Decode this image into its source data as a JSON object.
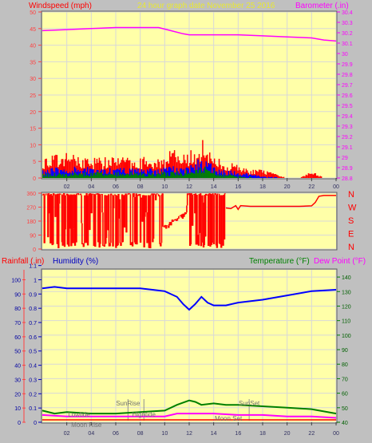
{
  "header": {
    "left": "Windspeed (mph)",
    "center": "24 hour graph date   November 25 2016",
    "right": "Barometer (.in)"
  },
  "colors": {
    "bg": "#c0c0c0",
    "plot": "#ffffa8",
    "grid": "#d8d8d8",
    "red": "#ff0000",
    "blue": "#0000ff",
    "green": "#008000",
    "magenta": "#ff00ff",
    "yellow": "#e8e830",
    "axisRed": "#ff4040",
    "axisBlue": "#0000c0",
    "dark": "#404040"
  },
  "chart_data": [
    {
      "type": "area",
      "name": "windspeed-barometer",
      "x_ticks": [
        "02",
        "04",
        "06",
        "08",
        "10",
        "12",
        "14",
        "16",
        "18",
        "20",
        "22",
        "00"
      ],
      "y_left": {
        "label": "Windspeed (mph)",
        "ticks": [
          0,
          5,
          10,
          15,
          20,
          25,
          30,
          35,
          40,
          45,
          50
        ],
        "lim": [
          0,
          50
        ]
      },
      "y_right": {
        "label": "Barometer (.in)",
        "ticks": [
          "28.8",
          "28.9",
          "29",
          "29.1",
          "29.2",
          "29.3",
          "29.4",
          "29.5",
          "29.6",
          "29.7",
          "29.8",
          "29.9",
          "30",
          "30.1",
          "30.2",
          "30.3",
          "30.4"
        ],
        "lim": [
          28.8,
          30.4
        ]
      },
      "barometer": {
        "x": [
          0,
          2,
          4,
          6,
          8,
          9.5,
          10.5,
          11.5,
          12,
          13,
          14,
          16,
          18,
          20,
          22,
          23,
          24
        ],
        "y": [
          30.22,
          30.23,
          30.24,
          30.25,
          30.25,
          30.25,
          30.22,
          30.19,
          30.18,
          30.18,
          30.18,
          30.18,
          30.17,
          30.16,
          30.15,
          30.13,
          30.12
        ]
      },
      "gust_profile": {
        "x": [
          0,
          2,
          4,
          6,
          8,
          9,
          10,
          10.6,
          11,
          12,
          12.6,
          13,
          13.4,
          14,
          15,
          16,
          17,
          18,
          19,
          20,
          21,
          22,
          23,
          24
        ],
        "y": [
          5,
          6,
          5,
          5,
          5,
          5,
          5,
          9,
          5,
          6,
          8,
          10,
          7,
          5,
          4,
          3,
          2,
          2,
          1,
          0,
          0,
          2,
          0,
          0
        ]
      },
      "avg_profile": {
        "x": [
          0,
          2,
          4,
          6,
          8,
          10,
          11,
          12,
          13,
          14,
          15,
          16,
          17,
          18,
          20,
          22,
          24
        ],
        "y": [
          2,
          3,
          2.5,
          2.5,
          2.5,
          2.5,
          3,
          3,
          5,
          3,
          2,
          1.5,
          1,
          0.5,
          0,
          0,
          0
        ]
      },
      "low_profile": {
        "x": [
          0,
          4,
          8,
          10,
          12,
          13,
          14,
          15,
          16,
          18,
          24
        ],
        "y": [
          1,
          1.5,
          1.5,
          1.5,
          2,
          3,
          2,
          1,
          0.5,
          0,
          0
        ]
      }
    },
    {
      "type": "line",
      "name": "wind-direction",
      "y_ticks": [
        0,
        90,
        180,
        270,
        360
      ],
      "lim": [
        0,
        360
      ],
      "compass": [
        "N",
        "W",
        "S",
        "E",
        "N"
      ],
      "direction_after_noon": {
        "x": [
          15.0,
          15.4,
          15.8,
          16.0,
          16.2,
          17,
          18,
          19,
          20,
          21,
          22,
          22.3,
          22.6,
          23,
          24
        ],
        "y": [
          265,
          260,
          280,
          255,
          280,
          275,
          275,
          275,
          275,
          275,
          278,
          300,
          340,
          345,
          345
        ]
      }
    },
    {
      "type": "line",
      "name": "humidity-temperature",
      "x_ticks": [
        "02",
        "04",
        "06",
        "08",
        "10",
        "12",
        "14",
        "16",
        "18",
        "20",
        "22",
        "00"
      ],
      "y_left_outer": {
        "label": "Rainfall (.in)",
        "ticks": [
          0,
          10,
          20,
          30,
          40,
          50,
          60,
          70,
          80,
          90,
          100
        ]
      },
      "y_left_inner": {
        "label": "Humidity (%)",
        "ticks": [
          "0",
          "0.1",
          "0.2",
          "0.3",
          "0.4",
          "0.5",
          "0.6",
          "0.7",
          "0.8",
          "0.9",
          "1",
          "1.1"
        ]
      },
      "y_right": {
        "label": "Temperature (°F)",
        "label2": "Dew Point (°F)",
        "ticks": [
          40,
          50,
          60,
          70,
          80,
          90,
          100,
          110,
          120,
          130,
          140
        ]
      },
      "humidity": {
        "x": [
          0,
          1,
          2,
          4,
          6,
          8,
          9,
          10,
          11,
          11.5,
          12,
          12.5,
          13,
          13.5,
          14,
          15,
          16,
          18,
          20,
          22,
          24
        ],
        "y": [
          94,
          95,
          94,
          94,
          94,
          94,
          93,
          92,
          88,
          83,
          79,
          83,
          88,
          84,
          82,
          82,
          84,
          86,
          89,
          92,
          93
        ]
      },
      "temperature": {
        "x": [
          0,
          1,
          2,
          4,
          6,
          8,
          10,
          11,
          12,
          12.5,
          13,
          14,
          15,
          16,
          18,
          20,
          22,
          24
        ],
        "y": [
          48,
          46,
          47,
          46,
          46,
          47,
          48,
          52,
          55,
          54,
          52,
          53,
          52,
          52,
          51,
          50,
          49,
          46
        ]
      },
      "dew_point": {
        "x": [
          0,
          2,
          4,
          6,
          8,
          10,
          11,
          12,
          13,
          14,
          16,
          18,
          20,
          22,
          24
        ],
        "y": [
          45,
          44,
          44,
          44,
          44,
          44,
          46,
          46,
          46,
          46,
          45,
          45,
          44,
          44,
          43
        ]
      },
      "annotations": [
        {
          "text": "SunRise",
          "hour": 7.0
        },
        {
          "text": "SunSet",
          "hour": 16.9
        },
        {
          "text": "Lowtide",
          "hour": 3.0
        },
        {
          "text": "Hightide",
          "hour": 8.3
        },
        {
          "text": "Moon Rise",
          "hour": 3.6
        },
        {
          "text": "Moon Set",
          "hour": 15.2
        }
      ]
    }
  ]
}
